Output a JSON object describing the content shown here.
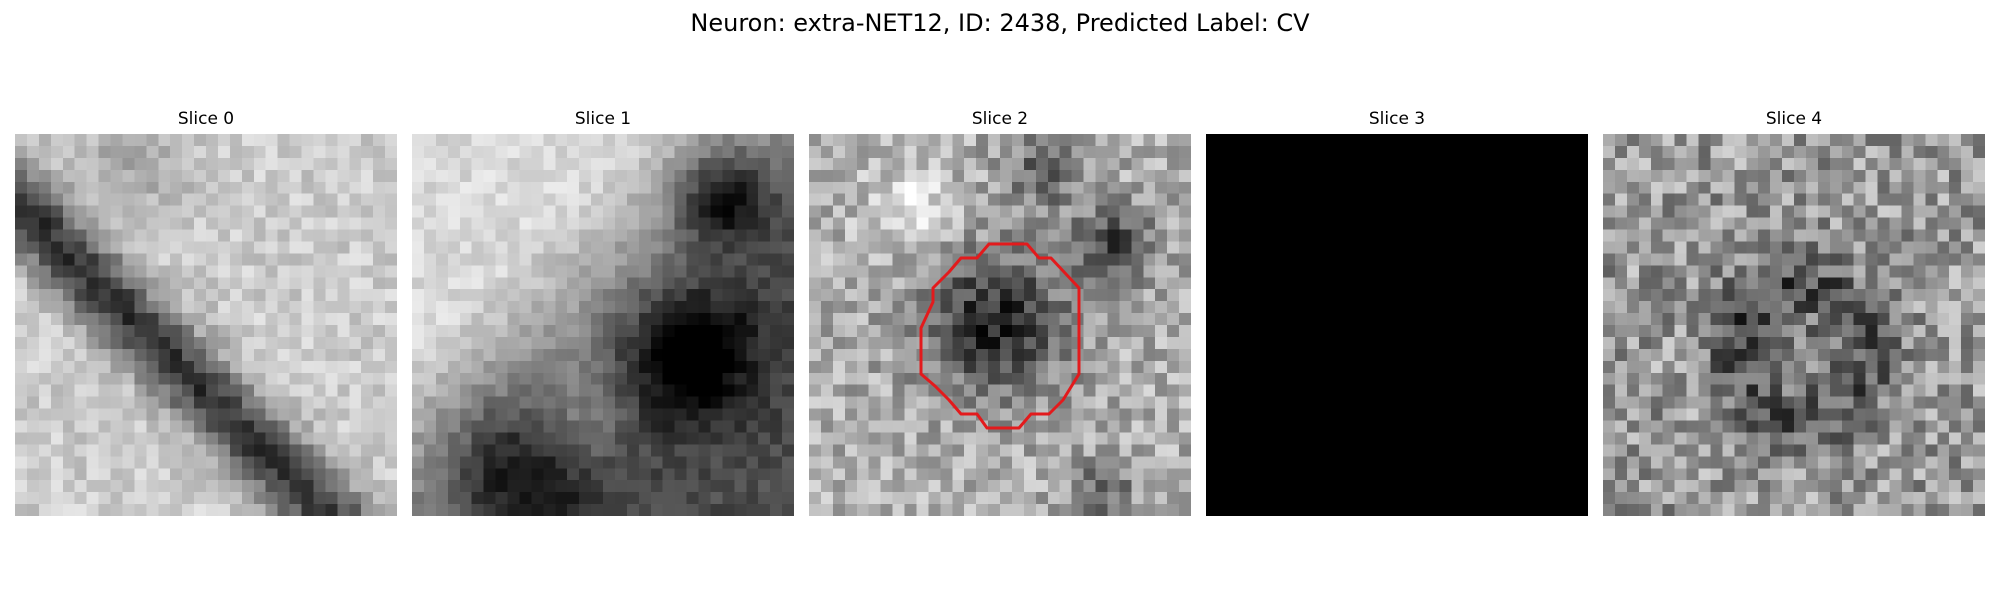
{
  "figure": {
    "title": "Neuron: extra-NET12, ID: 2438, Predicted Label: CV"
  },
  "panels": [
    {
      "title": "Slice 0",
      "description": "grayscale microscopy patch with a dark diagonal band running top-left to bottom-right"
    },
    {
      "title": "Slice 1",
      "description": "grayscale microscopy patch, bright upper-left region, dark lower and right regions"
    },
    {
      "title": "Slice 2",
      "description": "grayscale microscopy patch with a dark round cell outlined by a red contour",
      "outline_color": "#e31a1c"
    },
    {
      "title": "Slice 3",
      "description": "fully black patch"
    },
    {
      "title": "Slice 4",
      "description": "noisy grayscale microscopy patch with a faint dark ring shape"
    }
  ],
  "grid_size": 32
}
